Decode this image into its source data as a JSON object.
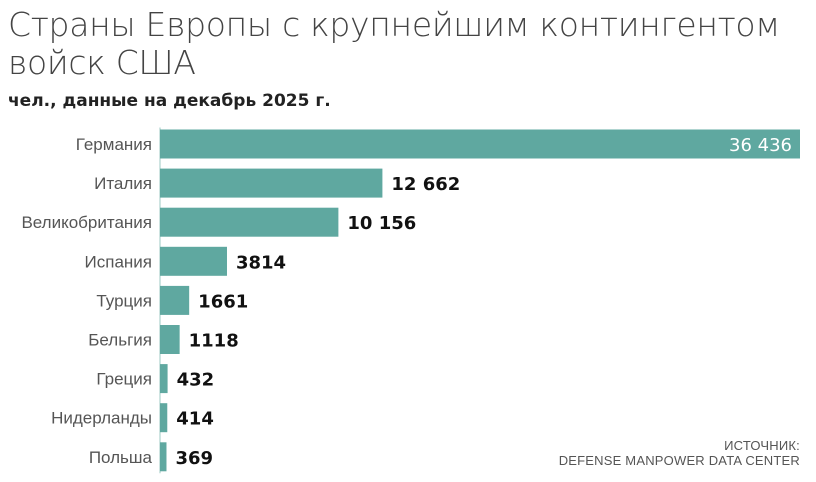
{
  "chart_data": {
    "type": "bar",
    "orientation": "horizontal",
    "title": "Страны Европы с крупнейшим контингентом войск США",
    "subtitle": "чел., данные на декабрь 2025 г.",
    "categories": [
      "Германия",
      "Италия",
      "Великобритания",
      "Испания",
      "Турция",
      "Бельгия",
      "Греция",
      "Нидерланды",
      "Польша"
    ],
    "values": [
      36436,
      12662,
      10156,
      3814,
      1661,
      1118,
      432,
      414,
      369
    ],
    "value_labels": [
      "36 436",
      "12 662",
      "10 156",
      "3814",
      "1661",
      "1118",
      "432",
      "414",
      "369"
    ],
    "xlim": [
      0,
      36436
    ],
    "grid": false,
    "legend": "none",
    "bar_color": "#5fa8a0",
    "label_color": "#555555",
    "value_label_color": "#111111",
    "inside_label_color": "#ffffff"
  },
  "source": {
    "line1": "ИСТОЧНИК:",
    "line2": "DEFENSE MANPOWER DATA CENTER"
  }
}
